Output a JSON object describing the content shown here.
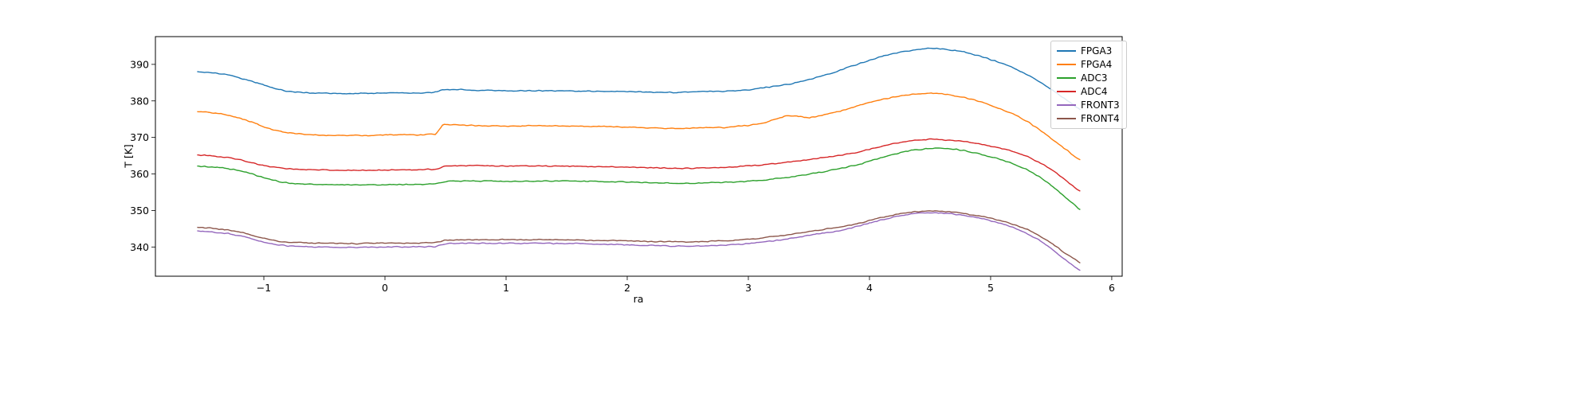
{
  "figure": {
    "background": "#ffffff",
    "frame_color": "#000000"
  },
  "chart_data": {
    "type": "line",
    "title": "",
    "xlabel": "ra",
    "ylabel": "T [K]",
    "grid": false,
    "legend_position": "upper right",
    "xlim": [
      -1.895,
      6.086
    ],
    "ylim": [
      332.0,
      397.6
    ],
    "xticks": [
      -1,
      0,
      1,
      2,
      3,
      4,
      5,
      6
    ],
    "xtick_labels": [
      "−1",
      "0",
      "1",
      "2",
      "3",
      "4",
      "5",
      "6"
    ],
    "yticks": [
      340,
      350,
      360,
      370,
      380,
      390
    ],
    "ytick_labels": [
      "340",
      "350",
      "360",
      "370",
      "380",
      "390"
    ],
    "noise": 0.32,
    "series": [
      {
        "name": "FPGA3",
        "color": "#1f77b4",
        "points": [
          [
            -1.55,
            388.0
          ],
          [
            -1.45,
            387.8
          ],
          [
            -1.3,
            387.2
          ],
          [
            -1.2,
            386.3
          ],
          [
            -1.1,
            385.4
          ],
          [
            -1.0,
            384.4
          ],
          [
            -0.9,
            383.3
          ],
          [
            -0.8,
            382.6
          ],
          [
            -0.65,
            382.2
          ],
          [
            -0.5,
            382.1
          ],
          [
            -0.3,
            382.0
          ],
          [
            -0.1,
            382.1
          ],
          [
            0.1,
            382.2
          ],
          [
            0.3,
            382.2
          ],
          [
            0.42,
            382.4
          ],
          [
            0.48,
            383.1
          ],
          [
            0.6,
            383.1
          ],
          [
            0.8,
            382.9
          ],
          [
            1.0,
            382.8
          ],
          [
            1.3,
            382.8
          ],
          [
            1.6,
            382.7
          ],
          [
            1.9,
            382.6
          ],
          [
            2.2,
            382.4
          ],
          [
            2.45,
            382.3
          ],
          [
            2.6,
            382.6
          ],
          [
            2.8,
            382.6
          ],
          [
            3.0,
            383.0
          ],
          [
            3.2,
            383.9
          ],
          [
            3.35,
            384.6
          ],
          [
            3.5,
            385.8
          ],
          [
            3.65,
            387.2
          ],
          [
            3.8,
            388.9
          ],
          [
            3.95,
            390.6
          ],
          [
            4.1,
            392.2
          ],
          [
            4.25,
            393.3
          ],
          [
            4.4,
            394.1
          ],
          [
            4.5,
            394.4
          ],
          [
            4.6,
            394.2
          ],
          [
            4.75,
            393.6
          ],
          [
            4.9,
            392.4
          ],
          [
            5.0,
            391.3
          ],
          [
            5.1,
            390.2
          ],
          [
            5.2,
            388.8
          ],
          [
            5.3,
            387.2
          ],
          [
            5.4,
            385.3
          ],
          [
            5.5,
            383.2
          ],
          [
            5.6,
            380.9
          ],
          [
            5.68,
            378.9
          ],
          [
            5.75,
            377.3
          ]
        ]
      },
      {
        "name": "FPGA4",
        "color": "#ff7f0e",
        "points": [
          [
            -1.55,
            377.1
          ],
          [
            -1.45,
            376.9
          ],
          [
            -1.3,
            376.2
          ],
          [
            -1.2,
            375.3
          ],
          [
            -1.1,
            374.2
          ],
          [
            -1.0,
            372.9
          ],
          [
            -0.9,
            371.9
          ],
          [
            -0.8,
            371.2
          ],
          [
            -0.65,
            370.8
          ],
          [
            -0.5,
            370.6
          ],
          [
            -0.3,
            370.5
          ],
          [
            -0.1,
            370.6
          ],
          [
            0.1,
            370.8
          ],
          [
            0.3,
            370.7
          ],
          [
            0.42,
            370.9
          ],
          [
            0.48,
            373.5
          ],
          [
            0.6,
            373.4
          ],
          [
            0.8,
            373.2
          ],
          [
            1.0,
            373.1
          ],
          [
            1.3,
            373.2
          ],
          [
            1.6,
            373.1
          ],
          [
            1.9,
            372.9
          ],
          [
            2.2,
            372.6
          ],
          [
            2.45,
            372.4
          ],
          [
            2.6,
            372.6
          ],
          [
            2.8,
            372.7
          ],
          [
            3.0,
            373.3
          ],
          [
            3.15,
            374.2
          ],
          [
            3.3,
            375.8
          ],
          [
            3.4,
            375.9
          ],
          [
            3.5,
            375.4
          ],
          [
            3.6,
            376.0
          ],
          [
            3.75,
            377.1
          ],
          [
            3.9,
            378.6
          ],
          [
            4.05,
            380.0
          ],
          [
            4.2,
            381.1
          ],
          [
            4.35,
            381.8
          ],
          [
            4.5,
            382.1
          ],
          [
            4.6,
            381.9
          ],
          [
            4.75,
            381.2
          ],
          [
            4.9,
            379.9
          ],
          [
            5.0,
            378.9
          ],
          [
            5.1,
            377.6
          ],
          [
            5.2,
            376.2
          ],
          [
            5.3,
            374.4
          ],
          [
            5.4,
            372.2
          ],
          [
            5.5,
            369.8
          ],
          [
            5.6,
            367.2
          ],
          [
            5.68,
            365.2
          ],
          [
            5.75,
            363.6
          ]
        ]
      },
      {
        "name": "ADC3",
        "color": "#2ca02c",
        "points": [
          [
            -1.55,
            362.1
          ],
          [
            -1.45,
            362.0
          ],
          [
            -1.3,
            361.5
          ],
          [
            -1.2,
            360.9
          ],
          [
            -1.1,
            360.0
          ],
          [
            -1.0,
            359.0
          ],
          [
            -0.9,
            358.1
          ],
          [
            -0.8,
            357.5
          ],
          [
            -0.65,
            357.2
          ],
          [
            -0.5,
            357.1
          ],
          [
            -0.3,
            357.0
          ],
          [
            -0.1,
            357.0
          ],
          [
            0.1,
            357.1
          ],
          [
            0.3,
            357.1
          ],
          [
            0.42,
            357.3
          ],
          [
            0.5,
            358.0
          ],
          [
            0.7,
            358.1
          ],
          [
            1.0,
            358.0
          ],
          [
            1.3,
            358.1
          ],
          [
            1.6,
            358.0
          ],
          [
            1.9,
            357.9
          ],
          [
            2.2,
            357.6
          ],
          [
            2.45,
            357.4
          ],
          [
            2.6,
            357.5
          ],
          [
            2.8,
            357.7
          ],
          [
            3.0,
            358.0
          ],
          [
            3.2,
            358.6
          ],
          [
            3.4,
            359.4
          ],
          [
            3.6,
            360.5
          ],
          [
            3.75,
            361.4
          ],
          [
            3.9,
            362.5
          ],
          [
            4.05,
            364.0
          ],
          [
            4.2,
            365.4
          ],
          [
            4.35,
            366.5
          ],
          [
            4.5,
            367.0
          ],
          [
            4.65,
            367.0
          ],
          [
            4.8,
            366.3
          ],
          [
            4.95,
            365.1
          ],
          [
            5.1,
            363.8
          ],
          [
            5.2,
            362.6
          ],
          [
            5.3,
            361.2
          ],
          [
            5.4,
            359.3
          ],
          [
            5.5,
            356.9
          ],
          [
            5.6,
            354.2
          ],
          [
            5.68,
            351.9
          ],
          [
            5.75,
            349.9
          ]
        ]
      },
      {
        "name": "ADC4",
        "color": "#d62728",
        "points": [
          [
            -1.55,
            365.2
          ],
          [
            -1.45,
            365.0
          ],
          [
            -1.3,
            364.5
          ],
          [
            -1.2,
            363.9
          ],
          [
            -1.1,
            363.1
          ],
          [
            -1.0,
            362.3
          ],
          [
            -0.9,
            361.8
          ],
          [
            -0.8,
            361.4
          ],
          [
            -0.65,
            361.2
          ],
          [
            -0.5,
            361.1
          ],
          [
            -0.3,
            361.0
          ],
          [
            -0.1,
            361.0
          ],
          [
            0.1,
            361.1
          ],
          [
            0.3,
            361.2
          ],
          [
            0.42,
            361.3
          ],
          [
            0.5,
            362.2
          ],
          [
            0.7,
            362.3
          ],
          [
            1.0,
            362.2
          ],
          [
            1.3,
            362.2
          ],
          [
            1.6,
            362.1
          ],
          [
            1.9,
            361.9
          ],
          [
            2.2,
            361.7
          ],
          [
            2.45,
            361.5
          ],
          [
            2.6,
            361.6
          ],
          [
            2.8,
            361.8
          ],
          [
            3.0,
            362.2
          ],
          [
            3.2,
            362.8
          ],
          [
            3.4,
            363.5
          ],
          [
            3.6,
            364.4
          ],
          [
            3.75,
            365.1
          ],
          [
            3.9,
            365.9
          ],
          [
            4.05,
            367.2
          ],
          [
            4.2,
            368.3
          ],
          [
            4.35,
            369.1
          ],
          [
            4.5,
            369.5
          ],
          [
            4.65,
            369.3
          ],
          [
            4.8,
            368.8
          ],
          [
            4.95,
            368.0
          ],
          [
            5.1,
            366.9
          ],
          [
            5.2,
            366.0
          ],
          [
            5.3,
            364.8
          ],
          [
            5.4,
            363.2
          ],
          [
            5.5,
            361.2
          ],
          [
            5.6,
            358.8
          ],
          [
            5.68,
            356.7
          ],
          [
            5.75,
            355.0
          ]
        ]
      },
      {
        "name": "FRONT3",
        "color": "#9467bd",
        "points": [
          [
            -1.55,
            344.4
          ],
          [
            -1.45,
            344.2
          ],
          [
            -1.3,
            343.7
          ],
          [
            -1.2,
            343.1
          ],
          [
            -1.1,
            342.3
          ],
          [
            -1.0,
            341.4
          ],
          [
            -0.9,
            340.7
          ],
          [
            -0.8,
            340.3
          ],
          [
            -0.65,
            340.1
          ],
          [
            -0.5,
            340.0
          ],
          [
            -0.3,
            339.9
          ],
          [
            -0.1,
            339.9
          ],
          [
            0.1,
            340.0
          ],
          [
            0.3,
            340.0
          ],
          [
            0.42,
            340.1
          ],
          [
            0.5,
            340.9
          ],
          [
            0.7,
            341.0
          ],
          [
            1.0,
            341.0
          ],
          [
            1.3,
            341.0
          ],
          [
            1.6,
            340.9
          ],
          [
            1.9,
            340.7
          ],
          [
            2.2,
            340.4
          ],
          [
            2.45,
            340.2
          ],
          [
            2.6,
            340.3
          ],
          [
            2.8,
            340.5
          ],
          [
            3.0,
            340.9
          ],
          [
            3.2,
            341.6
          ],
          [
            3.4,
            342.6
          ],
          [
            3.6,
            343.7
          ],
          [
            3.75,
            344.5
          ],
          [
            3.9,
            345.6
          ],
          [
            4.05,
            347.0
          ],
          [
            4.2,
            348.2
          ],
          [
            4.35,
            349.1
          ],
          [
            4.5,
            349.4
          ],
          [
            4.65,
            349.2
          ],
          [
            4.8,
            348.6
          ],
          [
            4.95,
            347.6
          ],
          [
            5.1,
            346.3
          ],
          [
            5.2,
            345.2
          ],
          [
            5.3,
            343.7
          ],
          [
            5.4,
            341.9
          ],
          [
            5.5,
            339.6
          ],
          [
            5.6,
            337.0
          ],
          [
            5.68,
            334.9
          ],
          [
            5.75,
            333.4
          ]
        ]
      },
      {
        "name": "FRONT4",
        "color": "#8c564b",
        "points": [
          [
            -1.55,
            345.4
          ],
          [
            -1.45,
            345.2
          ],
          [
            -1.3,
            344.7
          ],
          [
            -1.2,
            344.1
          ],
          [
            -1.1,
            343.3
          ],
          [
            -1.0,
            342.4
          ],
          [
            -0.9,
            341.7
          ],
          [
            -0.8,
            341.3
          ],
          [
            -0.65,
            341.1
          ],
          [
            -0.5,
            341.0
          ],
          [
            -0.3,
            340.9
          ],
          [
            -0.1,
            341.0
          ],
          [
            0.1,
            341.1
          ],
          [
            0.3,
            341.1
          ],
          [
            0.42,
            341.2
          ],
          [
            0.5,
            341.9
          ],
          [
            0.7,
            342.0
          ],
          [
            1.0,
            342.0
          ],
          [
            1.3,
            342.0
          ],
          [
            1.6,
            341.9
          ],
          [
            1.9,
            341.8
          ],
          [
            2.2,
            341.5
          ],
          [
            2.45,
            341.4
          ],
          [
            2.6,
            341.5
          ],
          [
            2.8,
            341.7
          ],
          [
            3.0,
            342.1
          ],
          [
            3.2,
            342.8
          ],
          [
            3.4,
            343.7
          ],
          [
            3.6,
            344.7
          ],
          [
            3.75,
            345.4
          ],
          [
            3.9,
            346.4
          ],
          [
            4.05,
            347.7
          ],
          [
            4.2,
            348.8
          ],
          [
            4.35,
            349.6
          ],
          [
            4.5,
            349.9
          ],
          [
            4.65,
            349.7
          ],
          [
            4.8,
            349.1
          ],
          [
            4.95,
            348.2
          ],
          [
            5.1,
            347.1
          ],
          [
            5.2,
            346.1
          ],
          [
            5.3,
            344.8
          ],
          [
            5.4,
            343.2
          ],
          [
            5.5,
            341.1
          ],
          [
            5.6,
            338.7
          ],
          [
            5.68,
            336.9
          ],
          [
            5.75,
            335.4
          ]
        ]
      }
    ]
  }
}
